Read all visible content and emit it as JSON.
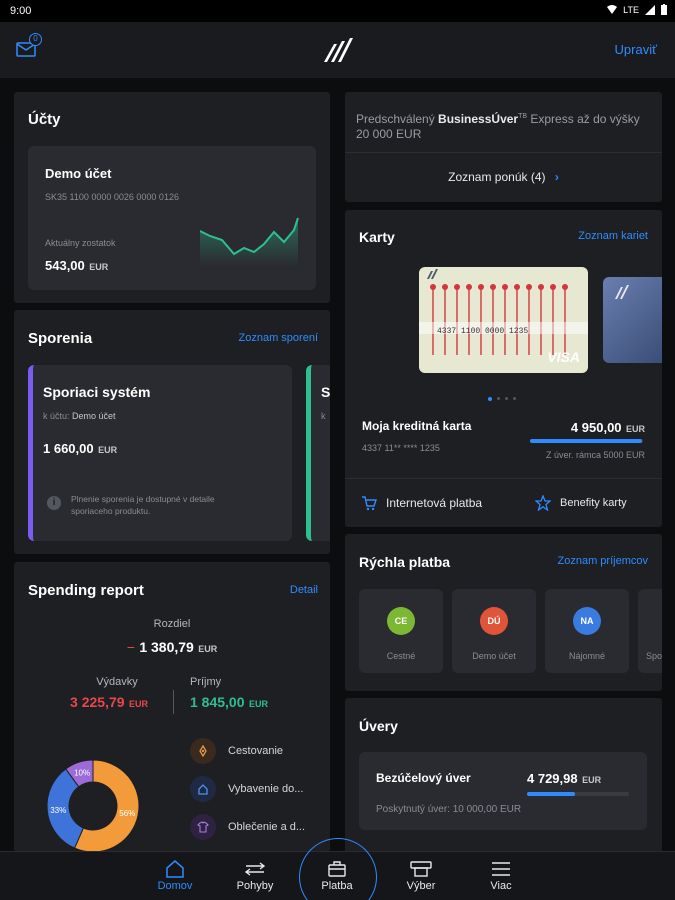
{
  "status": {
    "time": "9:00",
    "network": "LTE"
  },
  "header": {
    "badge_count": "0",
    "edit_label": "Upraviť"
  },
  "accounts": {
    "title": "Účty",
    "account_name": "Demo účet",
    "iban": "SK35 1100 0000 0026 0000 0126",
    "balance_label": "Aktuálny zostatok",
    "balance": "543,00",
    "currency": "EUR"
  },
  "offer": {
    "text_prefix": "Predschválený ",
    "text_bold": "BusinessÚver",
    "text_sup": "TB",
    "text_suffix": " Express až do výšky 20 000 EUR",
    "list_label": "Zoznam ponúk (4)"
  },
  "savings": {
    "title": "Sporenia",
    "link": "Zoznam sporení",
    "name": "Sporiaci systém",
    "account_prefix": "k účtu: ",
    "account": "Demo účet",
    "amount": "1 660,00",
    "currency": "EUR",
    "info": "Plnenie sporenia je dostupné v detaile sporiaceho produktu.",
    "next_initial": "S",
    "next_sub": "k"
  },
  "cards": {
    "title": "Karty",
    "link": "Zoznam kariet",
    "card_number_preview": "4337 1100 0000 1235",
    "brand": "VISA",
    "name": "Moja kreditná karta",
    "number": "4337 11** **** 1235",
    "amount": "4 950,00",
    "currency": "EUR",
    "limit_text": "Z úver. rámca 5000 EUR",
    "usage_fraction": 0.99,
    "action_internet": "Internetová platba",
    "action_benefits": "Benefity karty"
  },
  "spending": {
    "title": "Spending report",
    "link": "Detail",
    "diff_label": "Rozdiel",
    "diff_sign": "−",
    "diff_value": "1 380,79",
    "currency": "EUR",
    "expenses_label": "Výdavky",
    "expenses_value": "3 225,79",
    "income_label": "Príjmy",
    "income_value": "1 845,00",
    "categories": [
      {
        "label": "Cestovanie",
        "icon": "compass-icon"
      },
      {
        "label": "Vybavenie do...",
        "icon": "home-icon"
      },
      {
        "label": "Oblečenie a d...",
        "icon": "shirt-icon"
      }
    ],
    "chart_data": {
      "type": "pie",
      "categories": [
        "Orange",
        "Blue",
        "Purple"
      ],
      "values": [
        56,
        33,
        10
      ],
      "labels": [
        "56%",
        "33%",
        "10%"
      ],
      "colors": [
        "#f39a3a",
        "#3e74d9",
        "#9c6bd8"
      ]
    }
  },
  "quick_pay": {
    "title": "Rýchla platba",
    "link": "Zoznam príjemcov",
    "payees": [
      {
        "initials": "CE",
        "label": "Cestné",
        "color": "#7cb833"
      },
      {
        "initials": "DÚ",
        "label": "Demo účet",
        "color": "#e0543a"
      },
      {
        "initials": "NA",
        "label": "Nájomné",
        "color": "#3a7be0"
      }
    ],
    "partial_label": "Spo"
  },
  "loans": {
    "title": "Úvery",
    "name": "Bezúčelový úver",
    "amount": "4 729,98",
    "currency": "EUR",
    "provided_label": "Poskytnutý úver: 10 000,00 EUR",
    "progress_fraction": 0.47
  },
  "nav": {
    "home": "Domov",
    "movements": "Pohyby",
    "payment": "Platba",
    "withdrawal": "Výber",
    "more": "Viac"
  },
  "colors": {
    "accent": "#2f8cff",
    "expense": "#e5484d",
    "income": "#2fbf8f"
  }
}
